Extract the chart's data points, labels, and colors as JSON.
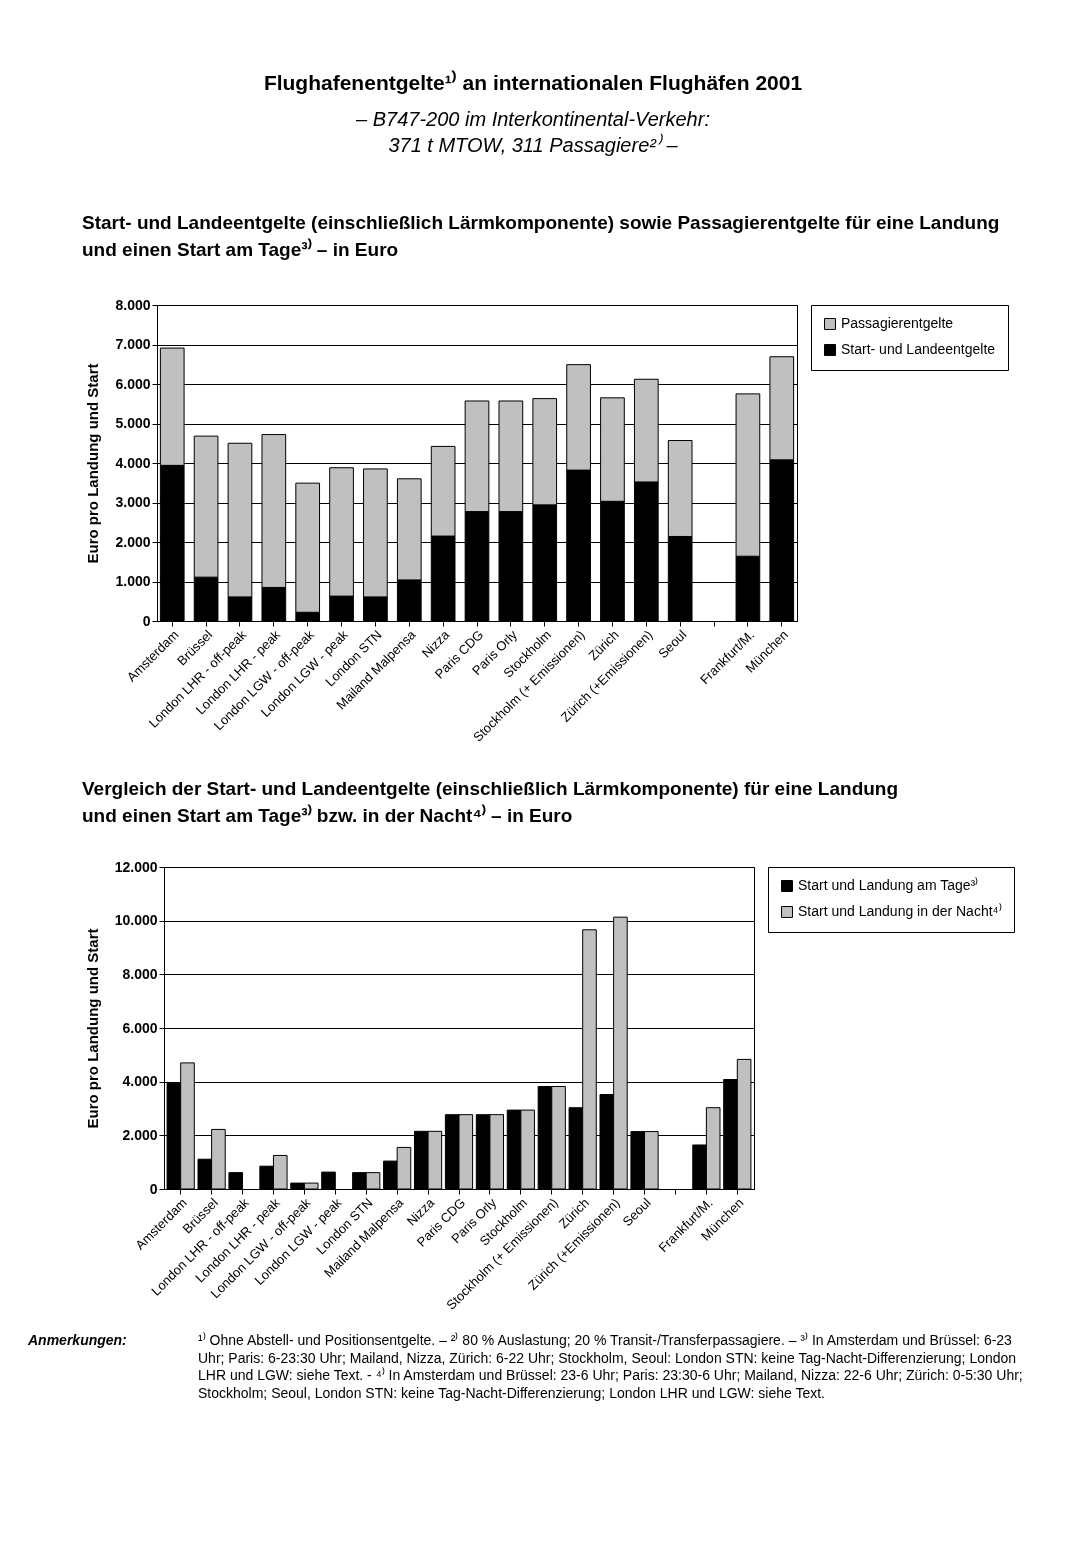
{
  "chart_data": [
    {
      "type": "bar",
      "title": "Flughafenentgelte¹⁾ an internationalen Flughäfen 2001",
      "subtitle": "– B747-200 im Interkontinental-Verkehr:\n371 t MTOW, 311 Passagiere²⁾ –",
      "annotations": [
        "Start- und Landeentgelte (einschließlich Lärmkomponente) sowie Passagierentgelte für eine Landung und einen Start am Tage³⁾ – in Euro"
      ],
      "ylabel": "Euro pro Landung und Start",
      "stacked": true,
      "legend": "right",
      "grid": "y",
      "categories": [
        "Amsterdam",
        "Brüssel",
        "London LHR - off-peak",
        "London LHR - peak",
        "London LGW - off-peak",
        "London LGW - peak",
        "London STN",
        "Mailand Malpensa",
        "Nizza",
        "Paris CDG",
        "Paris Orly",
        "Stockholm",
        "Stockholm (+ Emissionen)",
        "Zürich",
        "Zürich (+Emissionen)",
        "Seoul",
        null,
        "Frankfurt/M.",
        "München"
      ],
      "series": [
        {
          "name": "Start- und Landeentgelte",
          "color": "#000000",
          "values": [
            3940,
            1110,
            610,
            850,
            220,
            630,
            610,
            1040,
            2150,
            2770,
            2770,
            2940,
            3820,
            3030,
            3520,
            2140,
            null,
            1640,
            4080
          ]
        },
        {
          "name": "Passagierentgelte",
          "color": "#c0c0c0",
          "values": [
            2970,
            3570,
            3890,
            3870,
            3270,
            3250,
            3240,
            2560,
            2270,
            2800,
            2800,
            2690,
            2670,
            2620,
            2600,
            2430,
            null,
            4110,
            2610
          ]
        }
      ],
      "ylim": [
        0,
        8000
      ],
      "yticks": [
        0,
        {
          "value": 1000,
          "label": "1.000"
        },
        {
          "value": 2000,
          "label": "2.000"
        },
        {
          "value": 3000,
          "label": "3.000"
        },
        {
          "value": 4000,
          "label": "4.000"
        },
        {
          "value": 5000,
          "label": "5.000"
        },
        {
          "value": 6000,
          "label": "6.000"
        },
        {
          "value": 7000,
          "label": "7.000"
        },
        {
          "value": 8000,
          "label": "8.000"
        }
      ]
    },
    {
      "type": "bar",
      "title": "Vergleich der Start- und Landeentgelte (einschließlich Lärmkomponente) für eine Landung und einen Start am Tage³⁾ bzw. in der Nacht⁴⁾ – in Euro",
      "annotations": [
        "Anmerkungen:",
        "¹⁾ Ohne Abstell- und Positionsentgelte. – ²⁾ 80 % Auslastung; 20 % Transit-/Transferpassagiere. – ³⁾ In Amsterdam und Brüssel: 6-23 Uhr; Paris: 6-23:30 Uhr; Mailand, Nizza, Zürich: 6-22 Uhr; Stockholm, Seoul: London STN: keine Tag-Nacht-Differenzierung; London LHR und LGW: siehe Text. - ⁴⁾ In Amsterdam und Brüssel: 23-6 Uhr; Paris: 23:30-6 Uhr; Mailand, Nizza: 22-6 Uhr; Zürich: 0-5:30 Uhr; Stockholm; Seoul, London STN: keine Tag-Nacht-Differenzierung; London LHR und LGW: siehe Text."
      ],
      "ylabel": "Euro pro Landung und Start",
      "legend": "right",
      "grid": "y",
      "categories": [
        "Amsterdam",
        "Brüssel",
        "London LHR - off-peak",
        "London LHR - peak",
        "London LGW - off-peak",
        "London LGW - peak",
        "London STN",
        "Mailand Malpensa",
        "Nizza",
        "Paris CDG",
        "Paris Orly",
        "Stockholm",
        "Stockholm (+ Emissionen)",
        "Zürich",
        "Zürich (+Emissionen)",
        "Seoul",
        null,
        "Frankfurt/M.",
        "München"
      ],
      "series": [
        {
          "name": "Start und Landung am Tage³⁾",
          "color": "#000000",
          "values": [
            3940,
            1110,
            610,
            850,
            220,
            630,
            610,
            1040,
            2150,
            2770,
            2770,
            2940,
            3820,
            3030,
            3520,
            2140,
            null,
            1640,
            4080
          ]
        },
        {
          "name": "Start und Landung in der Nacht⁴⁾",
          "color": "#c0c0c0",
          "values": [
            4700,
            2220,
            null,
            1250,
            220,
            null,
            610,
            1550,
            2150,
            2770,
            2770,
            2940,
            3820,
            9660,
            10130,
            2140,
            null,
            3030,
            4830
          ]
        }
      ],
      "ylim": [
        0,
        12000
      ],
      "yticks": [
        0,
        {
          "value": 2000,
          "label": "2.000"
        },
        {
          "value": 4000,
          "label": "4.000"
        },
        {
          "value": 6000,
          "label": "6.000"
        },
        {
          "value": 8000,
          "label": "8.000"
        },
        {
          "value": 10000,
          "label": "10.000"
        },
        {
          "value": 12000,
          "label": "12.000"
        }
      ]
    }
  ]
}
